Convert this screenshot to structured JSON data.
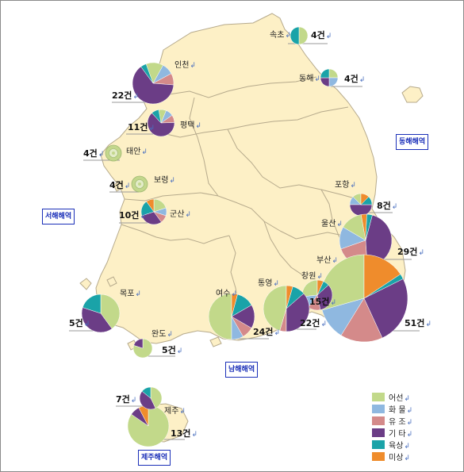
{
  "colors": {
    "land": "#fdf0c6",
    "boundary": "#b6aa8c",
    "sea_label": "#1a2fb8",
    "marker_a": "#c3d78c",
    "marker_b": "#e3ecc8"
  },
  "legend": {
    "items": [
      {
        "key": "fishing",
        "label": "어선",
        "color": "#c2d98a"
      },
      {
        "key": "cargo",
        "label": "화 물",
        "color": "#8fb8e0"
      },
      {
        "key": "tanker",
        "label": "유 조",
        "color": "#d48a8a"
      },
      {
        "key": "other",
        "label": "기 타",
        "color": "#6b3d86"
      },
      {
        "key": "landside",
        "label": "육상",
        "color": "#1aa3a8"
      },
      {
        "key": "unknown",
        "label": "미상",
        "color": "#ef8c2c"
      }
    ]
  },
  "sea_areas": [
    "동해해역",
    "서해해역",
    "남해해역",
    "제주해역"
  ],
  "ports": [
    {
      "name": "속초",
      "count": "4건",
      "total": 4,
      "values": {
        "fishing": 2,
        "cargo": 0,
        "tanker": 0,
        "other": 0,
        "landside": 2,
        "unknown": 0
      }
    },
    {
      "name": "동해",
      "count": "4건",
      "total": 4,
      "values": {
        "fishing": 1,
        "cargo": 1,
        "tanker": 0,
        "other": 1,
        "landside": 1,
        "unknown": 0
      }
    },
    {
      "name": "인천",
      "count": "22건",
      "total": 22,
      "values": {
        "fishing": 3,
        "cargo": 2,
        "tanker": 2,
        "other": 14,
        "landside": 1,
        "unknown": 0
      }
    },
    {
      "name": "평택",
      "count": "11건",
      "total": 11,
      "values": {
        "fishing": 1,
        "cargo": 1,
        "tanker": 1,
        "other": 7,
        "landside": 1,
        "unknown": 0
      }
    },
    {
      "name": "태안",
      "count": "4건",
      "total": 4,
      "values": {}
    },
    {
      "name": "보령",
      "count": "4건",
      "total": 4,
      "values": {}
    },
    {
      "name": "군산",
      "count": "10건",
      "total": 10,
      "values": {
        "fishing": 2,
        "cargo": 1,
        "tanker": 1,
        "other": 3,
        "landside": 2,
        "unknown": 1
      }
    },
    {
      "name": "포항",
      "count": "8건",
      "total": 8,
      "values": {
        "fishing": 1,
        "cargo": 1,
        "tanker": 0,
        "other": 4,
        "landside": 1,
        "unknown": 1
      }
    },
    {
      "name": "울산",
      "count": "29건",
      "total": 29,
      "values": {
        "fishing": 4,
        "cargo": 4,
        "tanker": 6,
        "other": 13,
        "landside": 1,
        "unknown": 1
      }
    },
    {
      "name": "부산",
      "count": "51건",
      "total": 51,
      "values": {
        "fishing": 15,
        "cargo": 6,
        "tanker": 8,
        "other": 13,
        "landside": 1,
        "unknown": 8
      }
    },
    {
      "name": "창원",
      "count": "15건",
      "total": 15,
      "values": {
        "fishing": 4,
        "cargo": 2,
        "tanker": 2,
        "other": 5,
        "landside": 1,
        "unknown": 1
      }
    },
    {
      "name": "통영",
      "count": "22건",
      "total": 22,
      "values": {
        "fishing": 10,
        "cargo": 0,
        "tanker": 1,
        "other": 8,
        "landside": 2,
        "unknown": 1
      }
    },
    {
      "name": "여수",
      "count": "24건",
      "total": 24,
      "values": {
        "fishing": 12,
        "cargo": 2,
        "tanker": 2,
        "other": 4,
        "landside": 3,
        "unknown": 1
      }
    },
    {
      "name": "목포",
      "count": "5건",
      "total": 5,
      "values": {
        "fishing": 2,
        "cargo": 0,
        "tanker": 0,
        "other": 2,
        "landside": 1,
        "unknown": 0
      }
    },
    {
      "name": "완도",
      "count": "5건",
      "total": 5,
      "values": {
        "fishing": 4,
        "cargo": 0,
        "tanker": 0,
        "other": 1,
        "landside": 0,
        "unknown": 0
      }
    },
    {
      "name": "제주",
      "count": "13건",
      "total": 13,
      "values": {
        "fishing": 11,
        "cargo": 0,
        "tanker": 0,
        "other": 1,
        "landside": 0,
        "unknown": 1
      }
    },
    {
      "name": "",
      "count": "7건",
      "total": 7,
      "values": {
        "fishing": 3,
        "cargo": 0,
        "tanker": 0,
        "other": 3,
        "landside": 1,
        "unknown": 0
      }
    }
  ]
}
